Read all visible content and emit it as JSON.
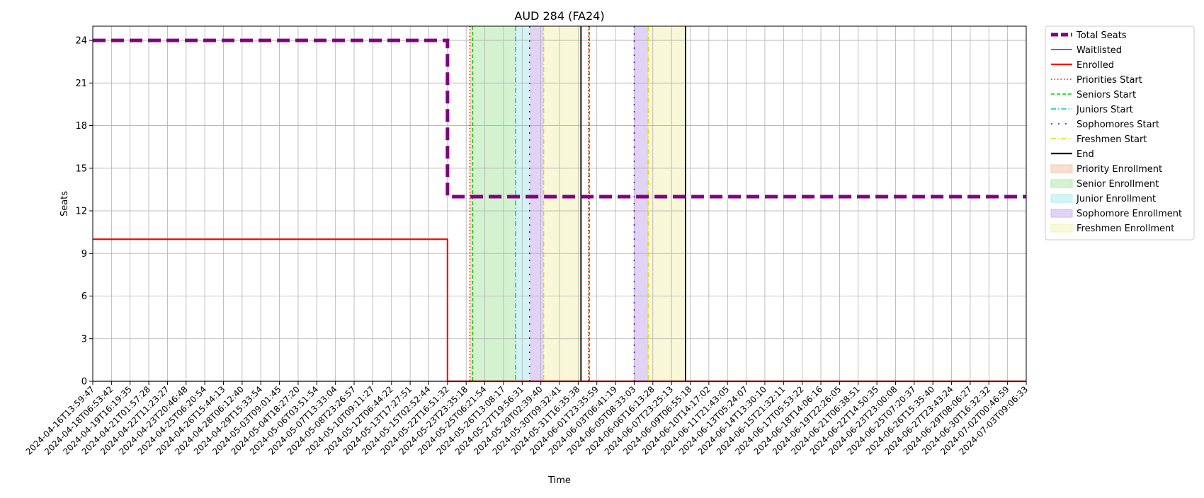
{
  "chart_data": {
    "type": "line",
    "title": "AUD 284 (FA24)",
    "xlabel": "Time",
    "ylabel": "Seats",
    "ylim": [
      0,
      25
    ],
    "yticks": [
      0,
      3,
      6,
      9,
      12,
      15,
      18,
      21,
      24
    ],
    "grid": true,
    "legend_position": "outside-right-top",
    "x_tick_labels": [
      "2024-04-16T13:59:47",
      "2024-04-18T06:53:42",
      "2024-04-19T16:19:35",
      "2024-04-21T01:57:28",
      "2024-04-22T11:23:27",
      "2024-04-23T20:46:48",
      "2024-04-25T06:20:54",
      "2024-04-26T15:44:13",
      "2024-04-28T06:12:40",
      "2024-04-29T15:33:54",
      "2024-05-03T09:01:45",
      "2024-05-04T18:27:20",
      "2024-05-06T03:51:54",
      "2024-05-07T13:33:04",
      "2024-05-08T23:26:57",
      "2024-05-10T09:11:27",
      "2024-05-12T06:44:22",
      "2024-05-13T17:27:51",
      "2024-05-15T02:52:44",
      "2024-05-22T16:51:32",
      "2024-05-23T23:35:18",
      "2024-05-25T06:21:54",
      "2024-05-26T13:08:17",
      "2024-05-27T19:56:31",
      "2024-05-29T02:39:40",
      "2024-05-30T09:32:41",
      "2024-05-31T16:35:38",
      "2024-06-01T23:35:59",
      "2024-06-03T06:41:19",
      "2024-06-05T08:33:03",
      "2024-06-06T16:13:28",
      "2024-06-07T23:25:13",
      "2024-06-09T06:55:18",
      "2024-06-10T14:17:02",
      "2024-06-11T21:43:05",
      "2024-06-13T05:24:07",
      "2024-06-14T13:30:10",
      "2024-06-15T21:32:11",
      "2024-06-17T05:53:22",
      "2024-06-18T14:06:16",
      "2024-06-19T22:26:05",
      "2024-06-21T06:38:51",
      "2024-06-22T14:50:35",
      "2024-06-23T23:00:08",
      "2024-06-25T07:20:37",
      "2024-06-26T15:35:40",
      "2024-06-27T23:43:24",
      "2024-06-29T08:06:27",
      "2024-06-30T16:32:32",
      "2024-07-02T00:46:59",
      "2024-07-03T09:06:33"
    ],
    "series": [
      {
        "name": "Total Seats",
        "color": "#800080",
        "style": "dashed-thick",
        "x": [
          "2024-04-16T13:59:47",
          "2024-05-22T16:51:32",
          "2024-05-22T16:51:32",
          "2024-07-03T09:06:33"
        ],
        "values": [
          24,
          24,
          13,
          13
        ]
      },
      {
        "name": "Waitlisted",
        "color": "#0000ff",
        "style": "solid-thin",
        "x": [
          "2024-04-16T13:59:47",
          "2024-07-03T09:06:33"
        ],
        "values": [
          0,
          0
        ]
      },
      {
        "name": "Enrolled",
        "color": "#ff0000",
        "style": "solid",
        "x": [
          "2024-04-16T13:59:47",
          "2024-05-22T16:51:32",
          "2024-05-22T16:51:32",
          "2024-07-03T09:06:33"
        ],
        "values": [
          10,
          10,
          0,
          0
        ]
      }
    ],
    "vertical_lines": [
      {
        "name": "Priorities Start",
        "color": "#ff0000",
        "style": "dotted",
        "at_tick": 20.2
      },
      {
        "name": "Priorities Start",
        "color": "#ff0000",
        "style": "dotted",
        "at_tick": 26.55
      },
      {
        "name": "Seniors Start",
        "color": "#00cc00",
        "style": "dashed",
        "at_tick": 20.35
      },
      {
        "name": "Seniors Start",
        "color": "#00cc00",
        "style": "dashed",
        "at_tick": 26.6
      },
      {
        "name": "Juniors Start",
        "color": "#00bfbf",
        "style": "dashdot",
        "at_tick": 22.65
      },
      {
        "name": "Sophomores Start",
        "color": "#5500cc",
        "style": "loose-dot",
        "at_tick": 23.4
      },
      {
        "name": "Sophomores Start",
        "color": "#5500cc",
        "style": "loose-dot",
        "at_tick": 29.0
      },
      {
        "name": "Freshmen Start",
        "color": "#dddd00",
        "style": "dashdot",
        "at_tick": 24.15
      },
      {
        "name": "Freshmen Start",
        "color": "#dddd00",
        "style": "dashdot",
        "at_tick": 29.75
      },
      {
        "name": "End",
        "color": "#000000",
        "style": "solid",
        "at_tick": 26.15
      },
      {
        "name": "End",
        "color": "#000000",
        "style": "solid",
        "at_tick": 31.75
      }
    ],
    "spans": [
      {
        "name": "Priority Enrollment",
        "color": "#f4c6b0",
        "from_tick": 20.2,
        "to_tick": 20.35
      },
      {
        "name": "Priority Enrollment",
        "color": "#f4c6b0",
        "from_tick": 26.55,
        "to_tick": 26.6
      },
      {
        "name": "Senior Enrollment",
        "color": "#b5ebb0",
        "from_tick": 20.35,
        "to_tick": 22.65
      },
      {
        "name": "Junior Enrollment",
        "color": "#b5ecef",
        "from_tick": 22.65,
        "to_tick": 23.4
      },
      {
        "name": "Sophomore Enrollment",
        "color": "#cdb6f0",
        "from_tick": 23.4,
        "to_tick": 24.15
      },
      {
        "name": "Sophomore Enrollment",
        "color": "#cdb6f0",
        "from_tick": 29.0,
        "to_tick": 29.75
      },
      {
        "name": "Freshmen Enrollment",
        "color": "#f3f3c0",
        "from_tick": 24.15,
        "to_tick": 26.15
      },
      {
        "name": "Freshmen Enrollment",
        "color": "#f3f3c0",
        "from_tick": 29.75,
        "to_tick": 31.75
      }
    ],
    "legend": [
      {
        "label": "Total Seats",
        "kind": "line",
        "color": "#800080",
        "style": "dashed-thick"
      },
      {
        "label": "Waitlisted",
        "kind": "line",
        "color": "#0000ff",
        "style": "solid-thin"
      },
      {
        "label": "Enrolled",
        "kind": "line",
        "color": "#ff0000",
        "style": "solid"
      },
      {
        "label": "Priorities Start",
        "kind": "line",
        "color": "#ff0000",
        "style": "dotted"
      },
      {
        "label": "Seniors Start",
        "kind": "line",
        "color": "#00cc00",
        "style": "dashed"
      },
      {
        "label": "Juniors Start",
        "kind": "line",
        "color": "#00bfbf",
        "style": "dashdot"
      },
      {
        "label": "Sophomores Start",
        "kind": "line",
        "color": "#5500cc",
        "style": "loose-dot"
      },
      {
        "label": "Freshmen Start",
        "kind": "line",
        "color": "#dddd00",
        "style": "dashdot"
      },
      {
        "label": "End",
        "kind": "line",
        "color": "#000000",
        "style": "solid"
      },
      {
        "label": "Priority Enrollment",
        "kind": "patch",
        "color": "#f4c6b0"
      },
      {
        "label": "Senior Enrollment",
        "kind": "patch",
        "color": "#b5ebb0"
      },
      {
        "label": "Junior Enrollment",
        "kind": "patch",
        "color": "#b5ecef"
      },
      {
        "label": "Sophomore Enrollment",
        "kind": "patch",
        "color": "#cdb6f0"
      },
      {
        "label": "Freshmen Enrollment",
        "kind": "patch",
        "color": "#f3f3c0"
      }
    ]
  }
}
